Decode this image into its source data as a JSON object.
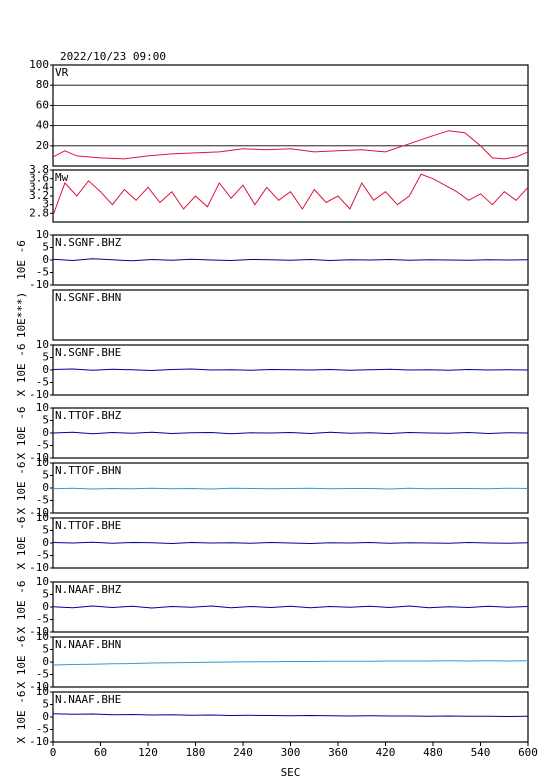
{
  "chart_data": [
    {
      "type": "line",
      "title": "2022/10/23 09:00",
      "label": "VR",
      "color": "#dc143c",
      "grid": true,
      "xlim": [
        0,
        600
      ],
      "ylim": [
        0,
        100
      ],
      "yticks": [
        20,
        40,
        60,
        80,
        100
      ],
      "x": [
        0,
        15,
        30,
        60,
        90,
        120,
        150,
        180,
        210,
        240,
        270,
        300,
        330,
        360,
        390,
        420,
        450,
        480,
        500,
        520,
        540,
        555,
        570,
        585,
        600
      ],
      "values": [
        9,
        15,
        10,
        8,
        7,
        10,
        12,
        13,
        14,
        17,
        16,
        17,
        14,
        15,
        16,
        14,
        22,
        30,
        35,
        33,
        20,
        8,
        7,
        9,
        14
      ]
    },
    {
      "type": "line",
      "label": "Mw",
      "color": "#dc143c",
      "xlim": [
        0,
        600
      ],
      "ylim": [
        2.6,
        3.8
      ],
      "yticks": [
        2.8,
        3.0,
        3.2,
        3.4,
        3.6,
        3.8
      ],
      "x": [
        0,
        15,
        30,
        45,
        60,
        75,
        90,
        105,
        120,
        135,
        150,
        165,
        180,
        195,
        210,
        225,
        240,
        255,
        270,
        285,
        300,
        315,
        330,
        345,
        360,
        375,
        390,
        405,
        420,
        435,
        450,
        465,
        480,
        495,
        510,
        525,
        540,
        555,
        570,
        585,
        600
      ],
      "values": [
        2.75,
        3.5,
        3.2,
        3.55,
        3.3,
        3.0,
        3.35,
        3.1,
        3.4,
        3.05,
        3.3,
        2.9,
        3.2,
        2.95,
        3.5,
        3.15,
        3.45,
        3.0,
        3.4,
        3.1,
        3.3,
        2.9,
        3.35,
        3.05,
        3.2,
        2.9,
        3.5,
        3.1,
        3.3,
        3.0,
        3.2,
        3.7,
        3.6,
        3.45,
        3.3,
        3.1,
        3.25,
        3.0,
        3.3,
        3.1,
        3.4
      ]
    },
    {
      "type": "line",
      "label": "N.SGNF.BHZ",
      "ylabel": "10E -6",
      "color": "#0000a0",
      "xlim": [
        0,
        600
      ],
      "ylim": [
        -10,
        10
      ],
      "yticks": [
        -10,
        -5,
        0,
        5,
        10
      ],
      "x": [
        0,
        25,
        50,
        75,
        100,
        125,
        150,
        175,
        200,
        225,
        250,
        275,
        300,
        325,
        350,
        375,
        400,
        425,
        450,
        475,
        500,
        525,
        550,
        575,
        600
      ],
      "values": [
        0.3,
        -0.2,
        0.5,
        0.1,
        -0.3,
        0.2,
        -0.1,
        0.3,
        0,
        -0.2,
        0.2,
        0.1,
        -0.1,
        0.2,
        -0.2,
        0.1,
        0,
        0.2,
        -0.1,
        0.1,
        0,
        -0.1,
        0.1,
        0,
        0.1
      ]
    },
    {
      "type": "line",
      "label": "N.SGNF.BHN",
      "ylabel": "10E***)",
      "color": "#0000a0",
      "xlim": [
        0,
        600
      ]
    },
    {
      "type": "line",
      "label": "N.SGNF.BHE",
      "ylabel": "X 10E -6",
      "color": "#0000a0",
      "xlim": [
        0,
        600
      ],
      "ylim": [
        -10,
        10
      ],
      "yticks": [
        -10,
        -5,
        0,
        5,
        10
      ],
      "x": [
        0,
        25,
        50,
        75,
        100,
        125,
        150,
        175,
        200,
        225,
        250,
        275,
        300,
        325,
        350,
        375,
        400,
        425,
        450,
        475,
        500,
        525,
        550,
        575,
        600
      ],
      "values": [
        0.2,
        0.4,
        -0.1,
        0.3,
        0.1,
        -0.2,
        0.2,
        0.4,
        0,
        0.1,
        -0.1,
        0.2,
        0.1,
        0,
        0.2,
        -0.1,
        0.1,
        0.3,
        0,
        0.1,
        -0.1,
        0.2,
        0,
        0.1,
        0
      ]
    },
    {
      "type": "line",
      "label": "N.TTOF.BHZ",
      "ylabel": "X 10E -6",
      "color": "#0000a0",
      "xlim": [
        0,
        600
      ],
      "ylim": [
        -10,
        10
      ],
      "yticks": [
        -10,
        -5,
        0,
        5,
        10
      ],
      "x": [
        0,
        25,
        50,
        75,
        100,
        125,
        150,
        175,
        200,
        225,
        250,
        275,
        300,
        325,
        350,
        375,
        400,
        425,
        450,
        475,
        500,
        525,
        550,
        575,
        600
      ],
      "values": [
        0,
        0.3,
        -0.3,
        0.2,
        -0.1,
        0.3,
        -0.2,
        0.1,
        0.2,
        -0.3,
        0.1,
        0,
        0.2,
        -0.2,
        0.3,
        -0.1,
        0.1,
        -0.2,
        0.2,
        0,
        -0.1,
        0.2,
        -0.2,
        0.1,
        0
      ]
    },
    {
      "type": "line",
      "label": "N.TTOF.BHN",
      "ylabel": "X 10E -6",
      "color": "#3399dd",
      "xlim": [
        0,
        600
      ],
      "ylim": [
        -10,
        10
      ],
      "yticks": [
        -10,
        -5,
        0,
        5,
        10
      ],
      "x": [
        0,
        25,
        50,
        75,
        100,
        125,
        150,
        175,
        200,
        225,
        250,
        275,
        300,
        325,
        350,
        375,
        400,
        425,
        450,
        475,
        500,
        525,
        550,
        575,
        600
      ],
      "values": [
        -0.3,
        -0.1,
        -0.4,
        -0.2,
        -0.3,
        -0.1,
        -0.3,
        -0.2,
        -0.4,
        -0.1,
        -0.2,
        -0.3,
        -0.2,
        -0.1,
        -0.3,
        -0.2,
        -0.2,
        -0.4,
        -0.1,
        -0.3,
        -0.2,
        -0.2,
        -0.3,
        -0.1,
        -0.2
      ]
    },
    {
      "type": "line",
      "label": "N.TTOF.BHE",
      "ylabel": "X 10E -6",
      "color": "#0000a0",
      "xlim": [
        0,
        600
      ],
      "ylim": [
        -10,
        10
      ],
      "yticks": [
        -10,
        -5,
        0,
        5,
        10
      ],
      "x": [
        0,
        25,
        50,
        75,
        100,
        125,
        150,
        175,
        200,
        225,
        250,
        275,
        300,
        325,
        350,
        375,
        400,
        425,
        450,
        475,
        500,
        525,
        550,
        575,
        600
      ],
      "values": [
        0.2,
        0,
        0.3,
        -0.1,
        0.2,
        0.1,
        -0.2,
        0.2,
        0,
        0.1,
        -0.1,
        0.2,
        0,
        -0.2,
        0.1,
        0,
        0.2,
        -0.1,
        0.1,
        0,
        -0.1,
        0.2,
        0,
        -0.1,
        0.1
      ]
    },
    {
      "type": "line",
      "label": "N.NAAF.BHZ",
      "ylabel": "X 10E -6",
      "color": "#0000a0",
      "xlim": [
        0,
        600
      ],
      "ylim": [
        -10,
        10
      ],
      "yticks": [
        -10,
        -5,
        0,
        5,
        10
      ],
      "x": [
        0,
        25,
        50,
        75,
        100,
        125,
        150,
        175,
        200,
        225,
        250,
        275,
        300,
        325,
        350,
        375,
        400,
        425,
        450,
        475,
        500,
        525,
        550,
        575,
        600
      ],
      "values": [
        0.1,
        -0.3,
        0.4,
        -0.2,
        0.3,
        -0.4,
        0.2,
        -0.1,
        0.4,
        -0.3,
        0.2,
        -0.2,
        0.3,
        -0.3,
        0.2,
        -0.1,
        0.3,
        -0.2,
        0.4,
        -0.3,
        0.1,
        -0.2,
        0.3,
        -0.1,
        0.2
      ]
    },
    {
      "type": "line",
      "label": "N.NAAF.BHN",
      "ylabel": "X 10E -6",
      "color": "#3399dd",
      "xlim": [
        0,
        600
      ],
      "ylim": [
        -10,
        10
      ],
      "yticks": [
        -10,
        -5,
        0,
        5,
        10
      ],
      "x": [
        0,
        25,
        50,
        75,
        100,
        125,
        150,
        175,
        200,
        225,
        250,
        275,
        300,
        325,
        350,
        375,
        400,
        425,
        450,
        475,
        500,
        525,
        550,
        575,
        600
      ],
      "values": [
        -1.2,
        -1,
        -0.9,
        -0.7,
        -0.6,
        -0.4,
        -0.3,
        -0.2,
        -0.1,
        0,
        0.1,
        0.1,
        0.2,
        0.2,
        0.3,
        0.3,
        0.3,
        0.4,
        0.4,
        0.4,
        0.5,
        0.4,
        0.5,
        0.4,
        0.5
      ]
    },
    {
      "type": "line",
      "label": "N.NAAF.BHE",
      "ylabel": "X 10E -6",
      "color": "#0000a0",
      "xlim": [
        0,
        600
      ],
      "ylim": [
        -10,
        10
      ],
      "yticks": [
        -10,
        -5,
        0,
        5,
        10
      ],
      "xticks": [
        0,
        60,
        120,
        180,
        240,
        300,
        360,
        420,
        480,
        540,
        600
      ],
      "xlabel": "SEC",
      "x": [
        0,
        25,
        50,
        75,
        100,
        125,
        150,
        175,
        200,
        225,
        250,
        275,
        300,
        325,
        350,
        375,
        400,
        425,
        450,
        475,
        500,
        525,
        550,
        575,
        600
      ],
      "values": [
        1.3,
        1.1,
        1.2,
        0.9,
        1,
        0.8,
        0.9,
        0.7,
        0.8,
        0.6,
        0.7,
        0.6,
        0.5,
        0.6,
        0.5,
        0.4,
        0.5,
        0.4,
        0.4,
        0.3,
        0.4,
        0.3,
        0.3,
        0.2,
        0.3
      ]
    }
  ]
}
